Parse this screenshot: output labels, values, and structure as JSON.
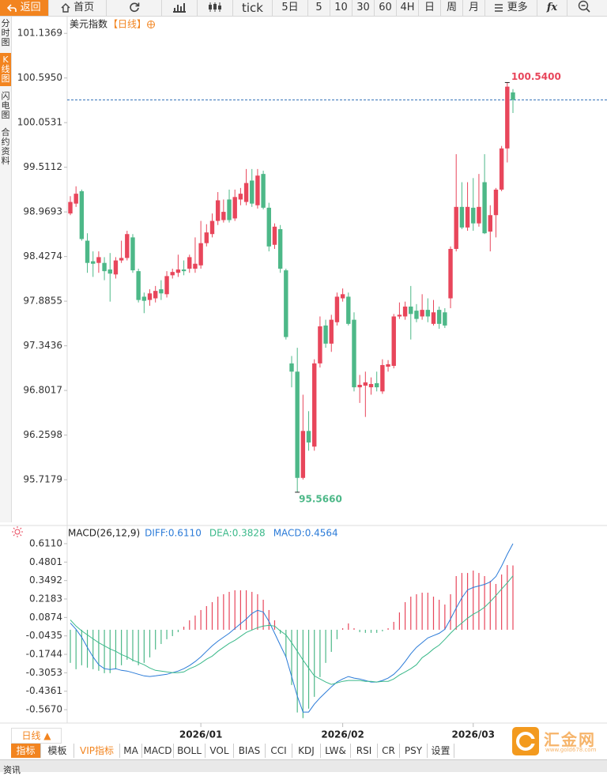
{
  "toolbar": {
    "back": "返回",
    "home": "首页",
    "tick": "tick",
    "periods": [
      "5日",
      "5",
      "10",
      "30",
      "60",
      "4H",
      "日",
      "周",
      "月"
    ],
    "more": "更多",
    "fx": "fx"
  },
  "sidebar": [
    "分时图",
    "K线图",
    "闪电图",
    "合约资料"
  ],
  "period_selector": "日线 ▲",
  "indicator_tabs": [
    "指标",
    "模板",
    "VIP指标",
    "MA",
    "MACD",
    "BOLL",
    "VOL",
    "BIAS",
    "CCI",
    "KDJ",
    "LW&",
    "RSI",
    "CR",
    "PSY",
    "设置"
  ],
  "logo": {
    "name": "汇金网",
    "url": "www.gold678.com"
  },
  "footer_tab": "资讯",
  "chart_data": [
    {
      "type": "candlestick",
      "title": "美元指数",
      "period": "【日线】",
      "categories": [
        null,
        null,
        null,
        null,
        null,
        null,
        null,
        null,
        null,
        null,
        null,
        null,
        null,
        null,
        null,
        null,
        null,
        null,
        null,
        null,
        null,
        null,
        null,
        "2026/01",
        null,
        null,
        null,
        null,
        null,
        null,
        null,
        null,
        null,
        null,
        null,
        null,
        null,
        null,
        null,
        null,
        null,
        null,
        null,
        null,
        null,
        null,
        null,
        null,
        "2026/02",
        null,
        null,
        null,
        null,
        null,
        null,
        null,
        null,
        null,
        null,
        null,
        null,
        null,
        null,
        null,
        null,
        null,
        null,
        null,
        null,
        null,
        null,
        "2026/03",
        null,
        null,
        null,
        null,
        null,
        null,
        null
      ],
      "open": [
        98.95,
        99.07,
        99.22,
        98.62,
        98.37,
        98.35,
        98.35,
        98.27,
        98.21,
        98.38,
        98.41,
        98.66,
        98.25,
        97.94,
        97.9,
        97.92,
        98.03,
        97.97,
        98.2,
        98.23,
        98.27,
        98.28,
        98.28,
        98.32,
        98.59,
        98.7,
        98.86,
        98.87,
        99.12,
        98.89,
        99.12,
        99.09,
        99.35,
        99.05,
        99.43,
        99.02,
        98.57,
        98.76,
        98.26,
        97.13,
        97.03,
        95.74,
        96.31,
        96.12,
        97.13,
        97.59,
        97.37,
        97.63,
        97.92,
        97.94,
        97.66,
        96.84,
        96.86,
        96.84,
        96.89,
        96.79,
        97.09,
        97.1,
        97.7,
        97.7,
        97.82,
        97.77,
        97.7,
        97.78,
        97.61,
        97.78,
        97.75,
        97.92,
        98.52,
        99.03,
        98.78,
        99.02,
        98.83,
        99.33,
        98.73,
        98.93,
        99.24,
        99.74,
        100.42
      ],
      "high": [
        99.16,
        99.28,
        99.24,
        98.71,
        98.49,
        98.49,
        98.42,
        98.47,
        98.42,
        98.62,
        98.74,
        98.7,
        98.28,
        97.99,
        98.03,
        98.07,
        98.14,
        98.25,
        98.28,
        98.45,
        98.38,
        98.45,
        98.66,
        98.86,
        98.82,
        98.95,
        99.21,
        99.12,
        99.24,
        99.24,
        99.26,
        99.49,
        99.49,
        99.49,
        99.47,
        99.08,
        98.83,
        98.81,
        98.28,
        97.22,
        97.32,
        96.75,
        96.55,
        97.18,
        97.7,
        97.66,
        97.72,
        97.99,
        98.04,
        97.99,
        97.75,
        96.99,
        97.03,
        96.96,
        97.03,
        97.18,
        97.17,
        97.73,
        97.87,
        97.88,
        98.07,
        97.85,
        97.97,
        97.92,
        97.9,
        97.82,
        97.8,
        98.55,
        99.67,
        99.33,
        99.33,
        99.38,
        99.43,
        99.67,
        99.05,
        99.26,
        99.77,
        100.54,
        100.46
      ],
      "low": [
        98.93,
        99.03,
        98.62,
        98.23,
        98.18,
        98.23,
        98.14,
        97.88,
        98.16,
        98.35,
        98.38,
        98.23,
        97.87,
        97.74,
        97.83,
        97.87,
        97.9,
        97.93,
        98.16,
        98.18,
        98.2,
        98.23,
        98.23,
        98.28,
        98.55,
        98.66,
        98.81,
        98.84,
        98.84,
        98.86,
        99.05,
        99.05,
        99.03,
        99.01,
        99.0,
        98.49,
        98.52,
        98.23,
        97.42,
        96.84,
        95.566,
        95.72,
        96.07,
        96.07,
        97.08,
        97.32,
        97.27,
        97.59,
        97.88,
        97.59,
        96.79,
        96.65,
        96.48,
        96.75,
        96.79,
        96.76,
        97.03,
        97.07,
        97.67,
        97.66,
        97.42,
        97.63,
        97.66,
        97.63,
        97.59,
        97.55,
        97.56,
        97.8,
        98.49,
        98.76,
        98.74,
        98.74,
        98.79,
        98.7,
        98.49,
        98.66,
        99.22,
        99.57,
        100.17
      ],
      "close": [
        99.09,
        99.19,
        98.64,
        98.35,
        98.34,
        98.42,
        98.25,
        98.22,
        98.38,
        98.41,
        98.7,
        98.26,
        97.9,
        97.89,
        97.98,
        98.01,
        97.98,
        98.19,
        98.24,
        98.27,
        98.25,
        98.42,
        98.34,
        98.59,
        98.72,
        98.86,
        99.11,
        98.97,
        98.87,
        99.15,
        99.19,
        99.32,
        99.07,
        99.41,
        99.02,
        98.55,
        98.79,
        98.28,
        97.45,
        97.03,
        95.74,
        96.31,
        96.17,
        97.13,
        97.58,
        97.37,
        97.66,
        97.94,
        97.97,
        97.61,
        96.84,
        96.87,
        96.9,
        96.88,
        96.84,
        97.11,
        97.12,
        97.7,
        97.72,
        97.82,
        97.73,
        97.67,
        97.78,
        97.7,
        97.75,
        97.61,
        97.59,
        98.52,
        99.03,
        98.78,
        99.03,
        98.83,
        99.03,
        98.71,
        98.93,
        99.24,
        99.74,
        100.49,
        100.33
      ],
      "up_color": "#e8465b",
      "down_color": "#4db888",
      "ylim": [
        95.21,
        101.35
      ],
      "yticks": [
        101.1369,
        {
          "value": 100.595,
          "label": "100.5950"
        },
        100.0531,
        99.5112,
        98.9693,
        98.4274,
        97.8855,
        97.3436,
        96.8017,
        96.2598,
        95.7179
      ],
      "annotations": [
        {
          "value": 100.54,
          "label": "100.5400",
          "color": "#e8465b"
        },
        {
          "value": 95.566,
          "label": "95.5660",
          "color": "#4db888"
        }
      ],
      "last_price_line": true,
      "last_price_color": "#2f6fb8"
    },
    {
      "type": "macd",
      "title": "MACD(26,12,9)",
      "series": [
        {
          "name": "DIFF:0.6110",
          "color": "#2b7bd8",
          "kind": "line",
          "values": [
            0.048,
            0.003,
            -0.053,
            -0.125,
            -0.192,
            -0.248,
            -0.276,
            -0.282,
            -0.276,
            -0.288,
            -0.293,
            -0.304,
            -0.316,
            -0.327,
            -0.332,
            -0.327,
            -0.321,
            -0.316,
            -0.304,
            -0.293,
            -0.276,
            -0.254,
            -0.226,
            -0.192,
            -0.153,
            -0.114,
            -0.081,
            -0.053,
            -0.025,
            0.009,
            0.043,
            0.076,
            0.115,
            0.138,
            0.126,
            0.059,
            -0.025,
            -0.109,
            -0.192,
            -0.332,
            -0.472,
            -0.584,
            -0.584,
            -0.528,
            -0.483,
            -0.444,
            -0.405,
            -0.371,
            -0.349,
            -0.332,
            -0.343,
            -0.349,
            -0.36,
            -0.371,
            -0.371,
            -0.36,
            -0.343,
            -0.316,
            -0.276,
            -0.226,
            -0.17,
            -0.125,
            -0.092,
            -0.058,
            -0.041,
            -0.025,
            0.003,
            0.076,
            0.154,
            0.227,
            0.283,
            0.3,
            0.311,
            0.322,
            0.339,
            0.378,
            0.451,
            0.535,
            0.611
          ]
        },
        {
          "name": "DEA:0.3828",
          "color": "#3bb98a",
          "kind": "line",
          "values": [
            0.07,
            0.026,
            -0.008,
            -0.036,
            -0.064,
            -0.092,
            -0.114,
            -0.136,
            -0.153,
            -0.176,
            -0.192,
            -0.215,
            -0.232,
            -0.248,
            -0.271,
            -0.288,
            -0.293,
            -0.299,
            -0.304,
            -0.304,
            -0.299,
            -0.276,
            -0.26,
            -0.237,
            -0.209,
            -0.187,
            -0.153,
            -0.125,
            -0.097,
            -0.075,
            -0.047,
            -0.019,
            -0.002,
            0.015,
            0.026,
            0.031,
            0.026,
            -0.008,
            -0.036,
            -0.092,
            -0.153,
            -0.215,
            -0.271,
            -0.327,
            -0.349,
            -0.371,
            -0.388,
            -0.377,
            -0.366,
            -0.36,
            -0.36,
            -0.36,
            -0.366,
            -0.366,
            -0.371,
            -0.366,
            -0.366,
            -0.349,
            -0.321,
            -0.299,
            -0.276,
            -0.248,
            -0.198,
            -0.17,
            -0.136,
            -0.109,
            -0.069,
            -0.025,
            0.015,
            0.048,
            0.082,
            0.11,
            0.132,
            0.16,
            0.199,
            0.243,
            0.289,
            0.333,
            0.3828
          ]
        },
        {
          "name": "MACD:0.4564",
          "color": "#2b7bd8",
          "kind": "bar",
          "values": [
            -0.235,
            -0.28,
            -0.252,
            -0.269,
            -0.28,
            -0.291,
            -0.308,
            -0.308,
            -0.28,
            -0.252,
            -0.213,
            -0.224,
            -0.252,
            -0.235,
            -0.196,
            -0.14,
            -0.101,
            -0.067,
            -0.045,
            -0.017,
            0.022,
            0.067,
            0.101,
            0.14,
            0.168,
            0.196,
            0.235,
            0.252,
            0.269,
            0.28,
            0.28,
            0.28,
            0.269,
            0.252,
            0.213,
            0.14,
            0.067,
            -0.028,
            -0.196,
            -0.392,
            -0.587,
            -0.627,
            -0.56,
            -0.476,
            -0.336,
            -0.235,
            -0.157,
            -0.067,
            0.011,
            0.045,
            0.011,
            -0.017,
            -0.022,
            -0.022,
            -0.022,
            -0.011,
            0.011,
            0.056,
            0.123,
            0.196,
            0.235,
            0.252,
            0.263,
            0.263,
            0.235,
            0.213,
            0.179,
            0.252,
            0.381,
            0.403,
            0.403,
            0.42,
            0.403,
            0.381,
            0.347,
            0.325,
            0.392,
            0.459,
            0.4564
          ]
        }
      ],
      "up_color": "#e8465b",
      "down_color": "#4db888",
      "ylim": [
        -0.662,
        0.723
      ],
      "yticks": [
        {
          "value": 0.611,
          "label": "0.6110"
        },
        0.4801,
        0.3492,
        0.2183,
        0.0874,
        -0.0435,
        -0.1744,
        -0.3053,
        -0.4361,
        {
          "value": -0.567,
          "label": "-0.5670"
        }
      ]
    }
  ]
}
